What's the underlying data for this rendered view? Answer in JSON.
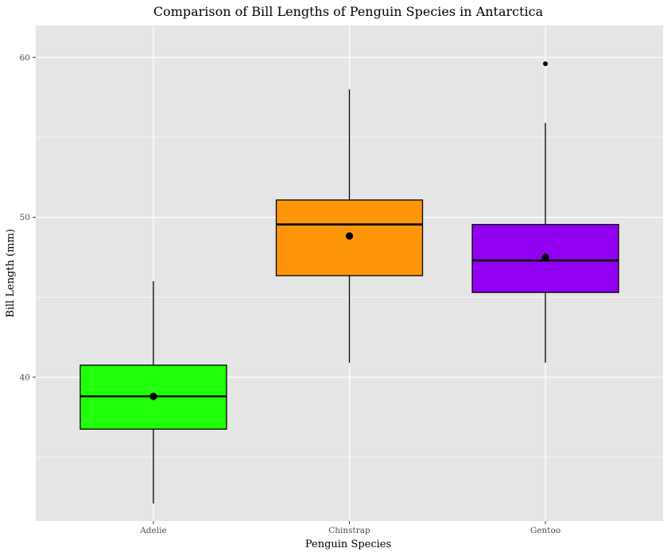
{
  "chart_data": {
    "type": "boxplot",
    "title": "Comparison of Bill Lengths of Penguin Species in Antarctica",
    "xlabel": "Penguin Species",
    "ylabel": "Bill Length (mm)",
    "ylim": [
      31,
      62
    ],
    "yticks": [
      40,
      50,
      60
    ],
    "grid": true,
    "legend": "none",
    "categories": [
      "Adelie",
      "Chinstrap",
      "Gentoo"
    ],
    "boxes": [
      {
        "category": "Adelie",
        "whisker_low": 32.1,
        "q1": 36.75,
        "median": 38.8,
        "q3": 40.75,
        "whisker_high": 46.0,
        "mean": 38.8,
        "outliers": [],
        "color": "#22ff0a"
      },
      {
        "category": "Chinstrap",
        "whisker_low": 40.9,
        "q1": 46.35,
        "median": 49.55,
        "q3": 51.08,
        "whisker_high": 58.0,
        "mean": 48.83,
        "outliers": [],
        "color": "#ff960a"
      },
      {
        "category": "Gentoo",
        "whisker_low": 40.9,
        "q1": 45.3,
        "median": 47.3,
        "q3": 49.55,
        "whisker_high": 55.9,
        "mean": 47.5,
        "outliers": [
          59.6
        ],
        "color": "#9100f0"
      }
    ],
    "colors": {
      "panel": "#e5e5e5",
      "grid": "#ffffff",
      "outline": "#000000"
    }
  }
}
